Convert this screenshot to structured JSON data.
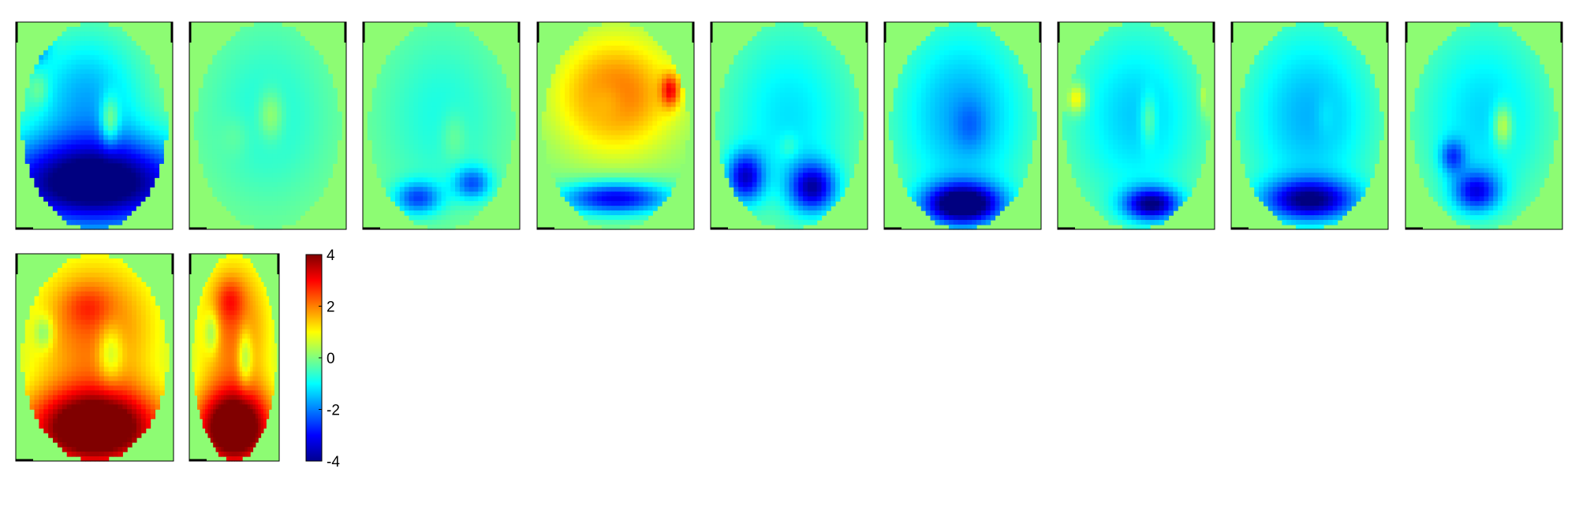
{
  "chart_data": {
    "type": "heatmap",
    "layout": {
      "rows": 2,
      "row1_panels": 9,
      "row2_panels": 2
    },
    "colormap": {
      "name": "jet",
      "range": [
        -4,
        4
      ],
      "ticks": [
        4,
        2,
        0,
        -2,
        -4
      ],
      "tick_labels": [
        "4",
        "2",
        "0",
        "-2",
        "-4"
      ]
    },
    "background_color": "#8dfc73",
    "panels": [
      {
        "blobs": [
          [
            0.5,
            0.78,
            0.65,
            0.22,
            -4.6
          ],
          [
            0.45,
            0.35,
            0.35,
            0.3,
            -1.6
          ],
          [
            0.6,
            0.48,
            0.06,
            0.12,
            1.6
          ],
          [
            0.15,
            0.33,
            0.06,
            0.08,
            0.6
          ],
          [
            0.1,
            0.1,
            0.1,
            0.1,
            -2.5
          ]
        ]
      },
      {
        "blobs": [
          [
            0.5,
            0.45,
            0.42,
            0.45,
            -0.8
          ],
          [
            0.52,
            0.45,
            0.08,
            0.12,
            0.9
          ],
          [
            0.3,
            0.55,
            0.1,
            0.1,
            0.3
          ]
        ]
      },
      {
        "blobs": [
          [
            0.5,
            0.45,
            0.42,
            0.45,
            -0.8
          ],
          [
            0.35,
            0.85,
            0.15,
            0.08,
            -2.2
          ],
          [
            0.7,
            0.78,
            0.12,
            0.08,
            -2.0
          ],
          [
            0.58,
            0.55,
            0.08,
            0.12,
            0.5
          ]
        ]
      },
      {
        "blobs": [
          [
            0.5,
            0.35,
            0.38,
            0.28,
            2.2
          ],
          [
            0.45,
            0.38,
            0.12,
            0.1,
            -0.5
          ],
          [
            0.5,
            0.85,
            0.35,
            0.08,
            -3.2
          ],
          [
            0.85,
            0.33,
            0.06,
            0.08,
            2.2
          ]
        ]
      },
      {
        "blobs": [
          [
            0.5,
            0.45,
            0.42,
            0.45,
            -1.2
          ],
          [
            0.22,
            0.75,
            0.12,
            0.12,
            -3.0
          ],
          [
            0.65,
            0.8,
            0.15,
            0.12,
            -3.2
          ],
          [
            0.5,
            0.6,
            0.06,
            0.06,
            0.5
          ]
        ]
      },
      {
        "blobs": [
          [
            0.5,
            0.45,
            0.42,
            0.45,
            -1.7
          ],
          [
            0.5,
            0.88,
            0.25,
            0.1,
            -4.5
          ],
          [
            0.55,
            0.5,
            0.1,
            0.12,
            -0.6
          ]
        ]
      },
      {
        "blobs": [
          [
            0.5,
            0.45,
            0.42,
            0.45,
            -1.4
          ],
          [
            0.12,
            0.37,
            0.06,
            0.07,
            1.6
          ],
          [
            0.58,
            0.47,
            0.05,
            0.12,
            1.0
          ],
          [
            0.6,
            0.88,
            0.18,
            0.08,
            -3.6
          ],
          [
            0.95,
            0.35,
            0.04,
            0.1,
            1.2
          ]
        ]
      },
      {
        "blobs": [
          [
            0.5,
            0.45,
            0.42,
            0.45,
            -1.6
          ],
          [
            0.6,
            0.45,
            0.06,
            0.1,
            0.3
          ],
          [
            0.5,
            0.86,
            0.3,
            0.1,
            -3.5
          ]
        ]
      },
      {
        "blobs": [
          [
            0.5,
            0.45,
            0.42,
            0.45,
            -1.3
          ],
          [
            0.62,
            0.5,
            0.06,
            0.1,
            1.6
          ],
          [
            0.45,
            0.82,
            0.15,
            0.1,
            -2.6
          ],
          [
            0.3,
            0.65,
            0.08,
            0.08,
            -1.8
          ]
        ]
      },
      {
        "blobs": [
          [
            0.5,
            0.35,
            0.45,
            0.38,
            2.2
          ],
          [
            0.18,
            0.38,
            0.06,
            0.08,
            -1.2
          ],
          [
            0.6,
            0.48,
            0.08,
            0.14,
            -1.3
          ],
          [
            0.5,
            0.85,
            0.45,
            0.2,
            5.0
          ],
          [
            0.45,
            0.25,
            0.15,
            0.1,
            0.7
          ]
        ]
      },
      {
        "blobs": [
          [
            0.5,
            0.35,
            0.45,
            0.38,
            2.2
          ],
          [
            0.25,
            0.38,
            0.08,
            0.1,
            -1.3
          ],
          [
            0.62,
            0.5,
            0.08,
            0.14,
            -1.5
          ],
          [
            0.5,
            0.85,
            0.45,
            0.2,
            5.0
          ],
          [
            0.45,
            0.22,
            0.15,
            0.1,
            1.0
          ]
        ]
      }
    ]
  }
}
